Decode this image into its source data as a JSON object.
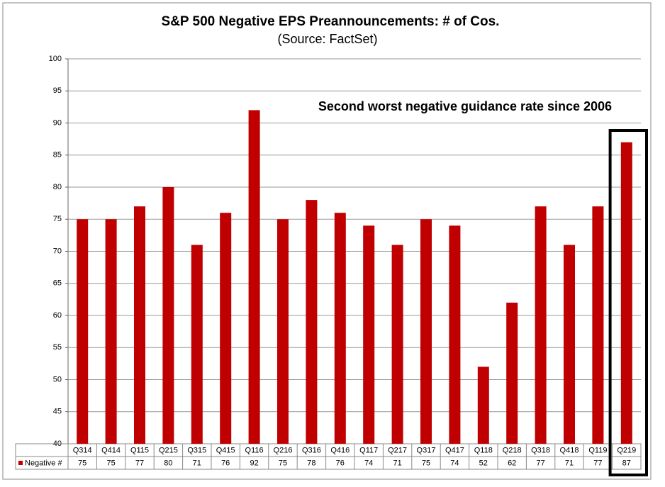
{
  "chart_data": {
    "type": "bar",
    "title": "S&P 500 Negative EPS Preannouncements: # of Cos.",
    "subtitle": "(Source: FactSet)",
    "annotation": "Second worst negative guidance rate since 2006",
    "categories": [
      "Q314",
      "Q414",
      "Q115",
      "Q215",
      "Q315",
      "Q415",
      "Q116",
      "Q216",
      "Q316",
      "Q416",
      "Q117",
      "Q217",
      "Q317",
      "Q417",
      "Q118",
      "Q218",
      "Q318",
      "Q418",
      "Q119",
      "Q219"
    ],
    "series": [
      {
        "name": "Negative #",
        "color": "#c00000",
        "values": [
          75,
          75,
          77,
          80,
          71,
          76,
          92,
          75,
          78,
          76,
          74,
          71,
          75,
          74,
          52,
          62,
          77,
          71,
          77,
          87
        ]
      }
    ],
    "ylim": [
      40,
      100
    ],
    "yticks": [
      40,
      45,
      50,
      55,
      60,
      65,
      70,
      75,
      80,
      85,
      90,
      95,
      100
    ],
    "grid": true
  }
}
